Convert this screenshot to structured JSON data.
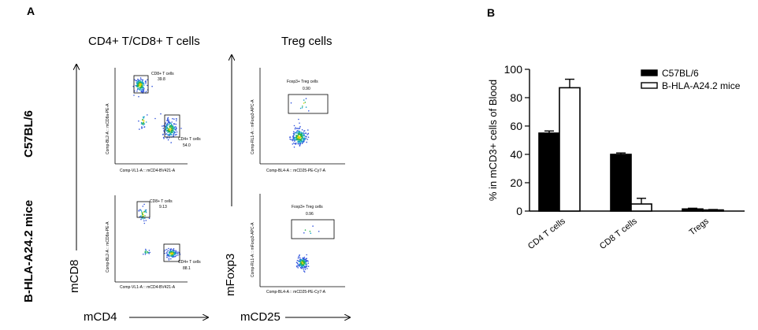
{
  "panel_a": {
    "letter": "A",
    "col_titles": [
      "CD4+ T/CD8+ T cells",
      "Treg cells"
    ],
    "row_labels": [
      "C57BL/6",
      "B-HLA-A24.2 mice"
    ],
    "axis_names": {
      "y_left": "mCD8",
      "y_mid": "mFoxp3",
      "x_left": "mCD4",
      "x_mid": "mCD25"
    },
    "plots": [
      {
        "ylabel": "Comp-BL2-A :: mCD8a-PE-A",
        "xlabel": "Comp-VL1-A :: mCD4-BV421-A",
        "gates": [
          {
            "name": "CD8+ T cells",
            "value": "39.8"
          },
          {
            "name": "CD4+ T cells",
            "value": "54.0"
          }
        ]
      },
      {
        "ylabel": "Comp-RL1-A :: mFoxp3-APC-A",
        "xlabel": "Comp-BL4-A :: mCD25-PE-Cy7-A",
        "gates": [
          {
            "name": "Foxp3+ Treg cells",
            "value": "0.90"
          }
        ]
      },
      {
        "ylabel": "Comp-BL2-A :: mCD8a-PE-A",
        "xlabel": "Comp-VL1-A :: mCD4-BV421-A",
        "gates": [
          {
            "name": "CD8+ T cells",
            "value": "9.13"
          },
          {
            "name": "CD4+ T cells",
            "value": "88.1"
          }
        ]
      },
      {
        "ylabel": "Comp-RL1-A :: mFoxp3-APC-A",
        "xlabel": "Comp-BL4-A :: mCD25-PE-Cy7-A",
        "gates": [
          {
            "name": "Foxp3+ Treg cells",
            "value": "0.96"
          }
        ]
      }
    ]
  },
  "panel_b": {
    "letter": "B"
  },
  "chart_data": {
    "type": "bar",
    "categories": [
      "CD4 T cells",
      "CD8 T cells",
      "Tregs"
    ],
    "series": [
      {
        "name": "C57BL/6",
        "values": [
          55,
          40,
          1.5
        ],
        "errors": [
          1.5,
          1,
          0.5
        ]
      },
      {
        "name": "B-HLA-A24.2 mice",
        "values": [
          87,
          5,
          0.8
        ],
        "errors": [
          6,
          4,
          0.3
        ]
      }
    ],
    "ylabel": "% in mCD3+ cells of Blood",
    "ylim": [
      0,
      100
    ],
    "yticks": [
      0,
      20,
      40,
      60,
      80,
      100
    ],
    "legend_position": "top-right",
    "colors": {
      "C57BL/6": "#000000",
      "B-HLA-A24.2 mice": "#ffffff"
    }
  }
}
